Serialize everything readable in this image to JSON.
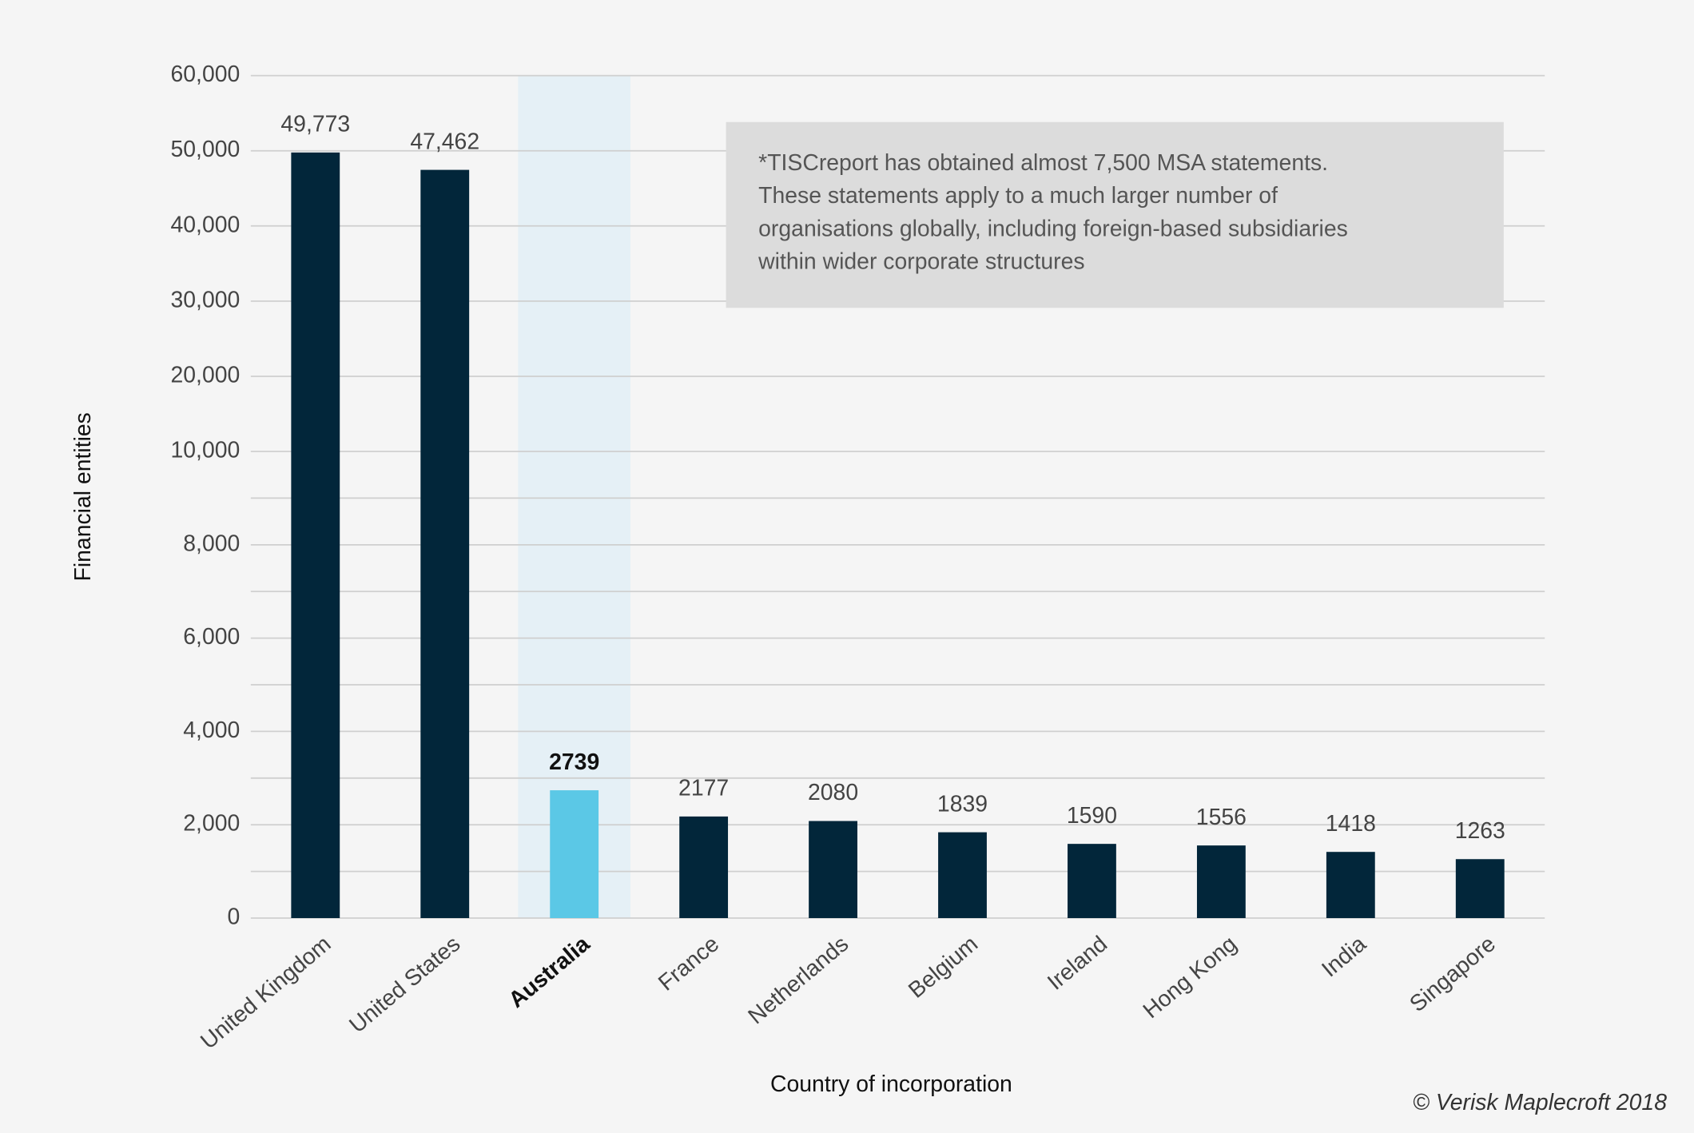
{
  "chart_data": {
    "type": "bar",
    "x_label": "Country of incorporation",
    "y_label": "Financial entities",
    "categories": [
      "United Kingdom",
      "United States",
      "Australia",
      "France",
      "Netherlands",
      "Belgium",
      "Ireland",
      "Hong Kong",
      "India",
      "Singapore"
    ],
    "values": [
      49773,
      47462,
      2739,
      2177,
      2080,
      1839,
      1590,
      1556,
      1418,
      1263
    ],
    "value_labels": [
      "49,773",
      "47,462",
      "2739",
      "2177",
      "2080",
      "1839",
      "1590",
      "1556",
      "1418",
      "1263"
    ],
    "color": "#02263a",
    "highlight": "Australia",
    "highlight_color": "#5bc8e6",
    "highlight_band_color": "#e5f0f6",
    "ylim": [
      0,
      60000
    ],
    "ybreak": 10000,
    "yticks": [
      0,
      {
        "value": 2000,
        "label": "2,000"
      },
      {
        "value": 4000,
        "label": "4,000"
      },
      {
        "value": 6000,
        "label": "6,000"
      },
      {
        "value": 8000,
        "label": "8,000"
      },
      {
        "value": 10000,
        "label": "10,000"
      },
      {
        "value": 20000,
        "label": "20,000"
      },
      {
        "value": 30000,
        "label": "30,000"
      },
      {
        "value": 40000,
        "label": "40,000"
      },
      {
        "value": 50000,
        "label": "50,000"
      },
      {
        "value": 60000,
        "label": "60,000"
      }
    ],
    "yminor": [
      1000,
      3000,
      5000,
      7000,
      9000
    ],
    "grid": true,
    "annotation": [
      "*TISCreport has obtained almost 7,500 MSA statements.",
      "These statements apply to a much larger number of",
      "organisations globally, including foreign-based subsidiaries",
      "within wider corporate structures"
    ],
    "credit": "© Verisk Maplecroft 2018"
  }
}
